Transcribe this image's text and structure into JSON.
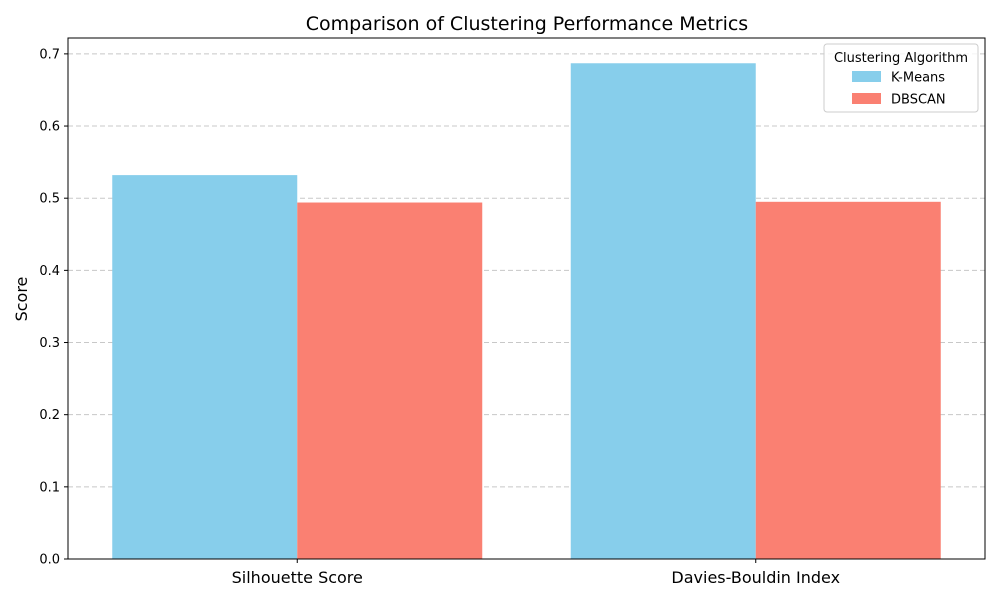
{
  "chart_data": {
    "type": "bar",
    "title": "Comparison of Clustering Performance Metrics",
    "xlabel": "",
    "ylabel": "Score",
    "categories": [
      "Silhouette Score",
      "Davies-Bouldin Index"
    ],
    "series": [
      {
        "name": "K-Means",
        "values": [
          0.532,
          0.687
        ],
        "color": "#87CEEB"
      },
      {
        "name": "DBSCAN",
        "values": [
          0.494,
          0.495
        ],
        "color": "#FA8072"
      }
    ],
    "ylim": [
      0,
      0.722
    ],
    "yticks": [
      0.0,
      0.1,
      0.2,
      0.3,
      0.4,
      0.5,
      0.6,
      0.7
    ],
    "ytick_labels": [
      "0.0",
      "0.1",
      "0.2",
      "0.3",
      "0.4",
      "0.5",
      "0.6",
      "0.7"
    ],
    "grid": "y-dashed",
    "legend": {
      "title": "Clustering Algorithm",
      "placement": "top-right"
    }
  }
}
